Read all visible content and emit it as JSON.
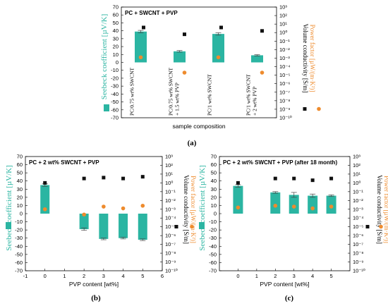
{
  "colors": {
    "bar": "#2bb5a2",
    "seebeck_axis": "#2bb5a2",
    "power_factor": "#ee8b2d",
    "conductivity": "#111111"
  },
  "y_left_label": "Seebeck coefficient [µV/K]",
  "y_right_label_1": "Volume conductivity [S/m]",
  "y_right_label_2": "Power factor [µW/(m·K²)]",
  "sublabels": [
    "(a)",
    "(b)",
    "(c)"
  ],
  "chart_data": [
    {
      "type": "bar",
      "title": "PC + SWCNT + PVP",
      "xlabel": "sample composition",
      "ylabel": "Seebeck coefficient [µV/K]",
      "y2label": "Volume conductivity [S/m] / Power factor [µW/(m·K²)]",
      "ylim": [
        -70,
        70
      ],
      "yticks": [
        70,
        60,
        50,
        40,
        30,
        20,
        10,
        0,
        -10,
        -20,
        -30,
        -40,
        -50,
        -60,
        -70
      ],
      "y2ticks": [
        "10³",
        "10²",
        "10¹",
        "10⁰",
        "10⁻¹",
        "10⁻²",
        "10⁻³",
        "10⁻⁴",
        "10⁻⁵",
        "10⁻⁶",
        "10⁻⁷",
        "10⁻⁸",
        "10⁻⁹",
        "10⁻¹⁰"
      ],
      "categories": [
        [
          "PC/0.75 wt% SWCNT"
        ],
        [
          "PC/0.75 wt% SWCNT",
          "+ 1.5 wt% PVP"
        ],
        [
          "PC/1 wt% SWCNT"
        ],
        [
          "PC/1 wt% SWCNT",
          "+ 2 wt% PVP"
        ]
      ],
      "series": [
        {
          "name": "Seebeck coefficient",
          "kind": "bar",
          "values": [
            39,
            14,
            36,
            9
          ],
          "errors": [
            1.5,
            1.0,
            1.5,
            0.8
          ]
        },
        {
          "name": "Volume conductivity",
          "kind": "scatter",
          "exp10": [
            0.6,
            -0.2,
            0.6,
            0.2
          ]
        },
        {
          "name": "Power factor",
          "kind": "scatter",
          "exp10": [
            -2.9,
            -4.7,
            -2.9,
            -4.7
          ]
        }
      ]
    },
    {
      "type": "bar",
      "title": "PC + 2 wt% SWCNT + PVP",
      "xlabel": "PVP content [wt%]",
      "ylabel": "Seebeck coefficient [µV/K]",
      "y2label": "Volume conductivity [S/m] / Power factor [µW/(m·K²)]",
      "xlim": [
        -1,
        6
      ],
      "xticks": [
        -1,
        0,
        1,
        2,
        3,
        4,
        5,
        6
      ],
      "ylim": [
        -70,
        70
      ],
      "yticks": [
        70,
        60,
        50,
        40,
        30,
        20,
        10,
        0,
        -10,
        -20,
        -30,
        -40,
        -50,
        -60,
        -70
      ],
      "y2ticks": [
        "10³",
        "10²",
        "10¹",
        "10⁰",
        "10⁻¹",
        "10⁻²",
        "10⁻³",
        "10⁻⁴",
        "10⁻⁵",
        "10⁻⁶",
        "10⁻⁷",
        "10⁻⁸",
        "10⁻⁹",
        "10⁻¹⁰"
      ],
      "x": [
        0,
        2,
        3,
        4,
        5
      ],
      "series": [
        {
          "name": "Seebeck coefficient",
          "kind": "bar",
          "values": [
            35,
            -19,
            -31,
            -30,
            -32
          ],
          "errors": [
            1.5,
            1.5,
            1.0,
            1.0,
            1.0
          ]
        },
        {
          "name": "Volume conductivity",
          "kind": "scatter",
          "exp10": [
            0.0,
            0.5,
            0.6,
            0.5,
            0.7
          ]
        },
        {
          "name": "Power factor",
          "kind": "scatter",
          "exp10": [
            -3.0,
            -3.6,
            -2.7,
            -2.9,
            -2.6
          ]
        }
      ]
    },
    {
      "type": "bar",
      "title": "PC + 2 wt% SWCNT + PVP (after 18 month)",
      "xlabel": "PVP content [wt%]",
      "ylabel": "Seebeck coefficient [µV/K]",
      "y2label": "Volume conductivity [S/m] / Power factor [µW/(m·K²)]",
      "xlim": [
        -1,
        6
      ],
      "xticks": [
        0,
        1,
        2,
        3,
        4,
        5
      ],
      "ylim": [
        -70,
        70
      ],
      "yticks": [
        70,
        60,
        50,
        40,
        30,
        20,
        10,
        0,
        -10,
        -20,
        -30,
        -40,
        -50,
        -60,
        -70
      ],
      "y2ticks": [
        "10³",
        "10²",
        "10¹",
        "10⁰",
        "10⁻¹",
        "10⁻²",
        "10⁻³",
        "10⁻⁴",
        "10⁻⁵",
        "10⁻⁶",
        "10⁻⁷",
        "10⁻⁸",
        "10⁻⁹",
        "10⁻¹⁰"
      ],
      "x": [
        0,
        2,
        3,
        4,
        5
      ],
      "series": [
        {
          "name": "Seebeck coefficient",
          "kind": "bar",
          "values": [
            34,
            26,
            23,
            22,
            22
          ],
          "errors": [
            1.5,
            1.0,
            3.0,
            2.0,
            1.0
          ]
        },
        {
          "name": "Volume conductivity",
          "kind": "scatter",
          "exp10": [
            0.0,
            0.5,
            0.5,
            0.3,
            0.5
          ]
        },
        {
          "name": "Power factor",
          "kind": "scatter",
          "exp10": [
            -2.8,
            -2.6,
            -2.7,
            -2.9,
            -2.7
          ]
        }
      ]
    }
  ]
}
